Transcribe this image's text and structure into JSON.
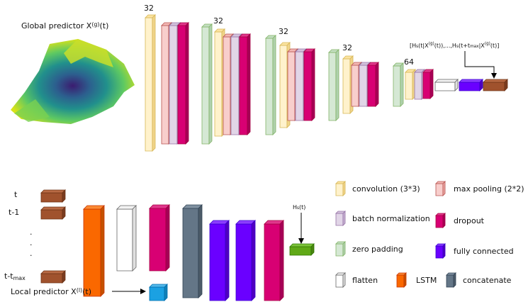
{
  "global_predictor": [
    {
      "text": "Global predictor X"
    },
    {
      "sup": "(g)"
    },
    {
      "text": "(t)"
    }
  ],
  "filter_counts": [
    "32",
    "32",
    "32",
    "32",
    "64"
  ],
  "output_sequence": [
    {
      "text": "[H"
    },
    {
      "sub": "s"
    },
    {
      "text": "(t|X"
    },
    {
      "sup": "(g)"
    },
    {
      "text": "(t)),...,H"
    },
    {
      "sub": "s"
    },
    {
      "text": "(t+t"
    },
    {
      "sub": "max"
    },
    {
      "text": "|X"
    },
    {
      "sup": "(g)"
    },
    {
      "text": "(t)]"
    }
  ],
  "time_steps": {
    "t": "t",
    "t_minus_1": "t-1",
    "dots": [
      ".",
      ".",
      "."
    ],
    "t_minus_tmax": [
      {
        "text": "t-t"
      },
      {
        "sub": "max"
      }
    ]
  },
  "local_predictor": [
    {
      "text": "Local predictor X"
    },
    {
      "sup": "(l)"
    },
    {
      "text": "(t)"
    }
  ],
  "output": [
    {
      "text": "H"
    },
    {
      "sub": "s"
    },
    {
      "text": "(t)"
    }
  ],
  "legend": [
    "convolution (3*3)",
    "max pooling (2*2)",
    "batch normalization",
    "dropout",
    "zero padding",
    "fully connected",
    "flatten",
    "LSTM",
    "concatenate"
  ]
}
